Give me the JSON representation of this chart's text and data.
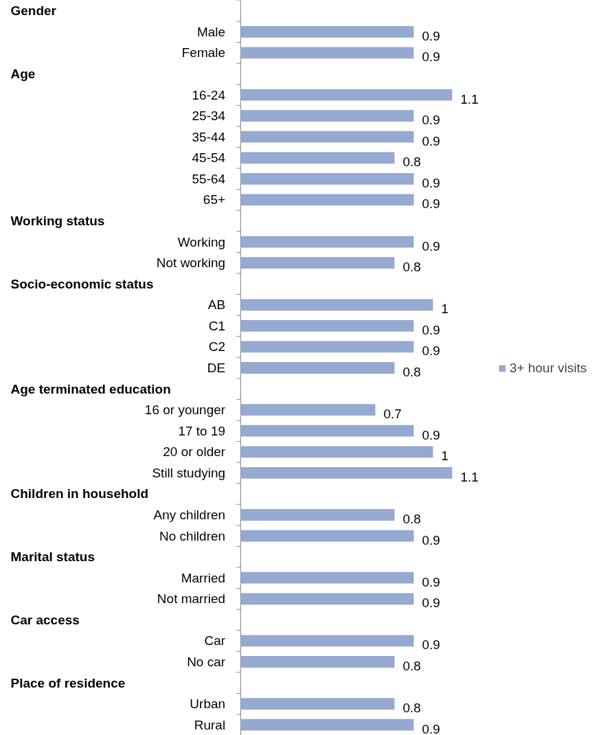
{
  "chart_data": {
    "type": "bar",
    "orientation": "horizontal",
    "categories": [
      null,
      "Male",
      "Female",
      null,
      "16-24",
      "25-34",
      "35-44",
      "45-54",
      "55-64",
      "65+",
      null,
      "Working",
      "Not working",
      null,
      "AB",
      "C1",
      "C2",
      "DE",
      null,
      "16 or younger",
      "17 to 19",
      "20 or older",
      "Still studying",
      null,
      "Any children",
      "No children",
      null,
      "Married",
      "Not married",
      null,
      "Car",
      "No car",
      null,
      "Urban",
      "Rural"
    ],
    "annotations": [
      "Gender",
      "Age",
      "Working status",
      "Socio-economic status",
      "Age terminated education",
      "Children in household",
      "Marital status",
      "Car access",
      "Place of residence"
    ],
    "series": [
      {
        "name": "3+ hour visits",
        "color": "#95a9d1",
        "values": [
          null,
          0.9,
          0.9,
          null,
          1.1,
          0.9,
          0.9,
          0.8,
          0.9,
          0.9,
          null,
          0.9,
          0.8,
          null,
          1,
          0.9,
          0.9,
          0.8,
          null,
          0.7,
          0.9,
          1,
          1.1,
          null,
          0.8,
          0.9,
          null,
          0.9,
          0.9,
          null,
          0.9,
          0.8,
          null,
          0.8,
          0.9
        ]
      }
    ],
    "data_labels": true,
    "legend": "right",
    "grid": false
  }
}
